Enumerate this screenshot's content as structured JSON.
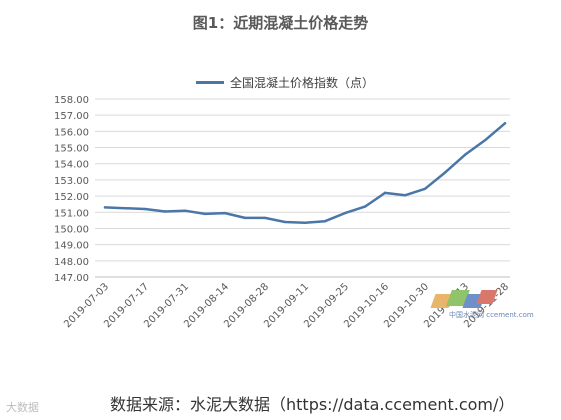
{
  "title": "图1：近期混凝土价格走势",
  "source_note": "数据来源：水泥大数据（https://data.ccement.com/）",
  "watermark": "大数据",
  "logo_text": "中国水泥网 ccement.com",
  "colors": {
    "line": "#4a76a8",
    "grid": "#d9d9d9",
    "axis_text": "#595959"
  },
  "chart_data": {
    "type": "line",
    "title": "图1：近期混凝土价格走势",
    "xlabel": "",
    "ylabel": "",
    "ylim": [
      147.0,
      158.0
    ],
    "yticks": [
      "147.00",
      "148.00",
      "149.00",
      "150.00",
      "151.00",
      "152.00",
      "153.00",
      "154.00",
      "155.00",
      "156.00",
      "157.00",
      "158.00"
    ],
    "grid": true,
    "legend_position": "top-center",
    "x": [
      "2019-07-03",
      "2019-07-10",
      "2019-07-17",
      "2019-07-24",
      "2019-07-31",
      "2019-08-07",
      "2019-08-14",
      "2019-08-21",
      "2019-08-28",
      "2019-09-04",
      "2019-09-11",
      "2019-09-18",
      "2019-09-25",
      "2019-10-02",
      "2019-10-16",
      "2019-10-23",
      "2019-10-30",
      "2019-11-06",
      "2019-11-13",
      "2019-11-20",
      "2019-11-28"
    ],
    "x_tick_labels": [
      "2019-07-03",
      "2019-07-17",
      "2019-07-31",
      "2019-08-14",
      "2019-08-28",
      "2019-09-11",
      "2019-09-25",
      "2019-10-16",
      "2019-10-30",
      "2019-11-13",
      "2019-11-28"
    ],
    "series": [
      {
        "name": "全国混凝土价格指数（点）",
        "values": [
          151.3,
          151.25,
          151.2,
          151.05,
          151.1,
          150.9,
          150.95,
          150.65,
          150.65,
          150.4,
          150.35,
          150.45,
          150.95,
          151.35,
          152.2,
          152.05,
          152.45,
          153.45,
          154.55,
          155.45,
          156.5
        ]
      }
    ]
  }
}
